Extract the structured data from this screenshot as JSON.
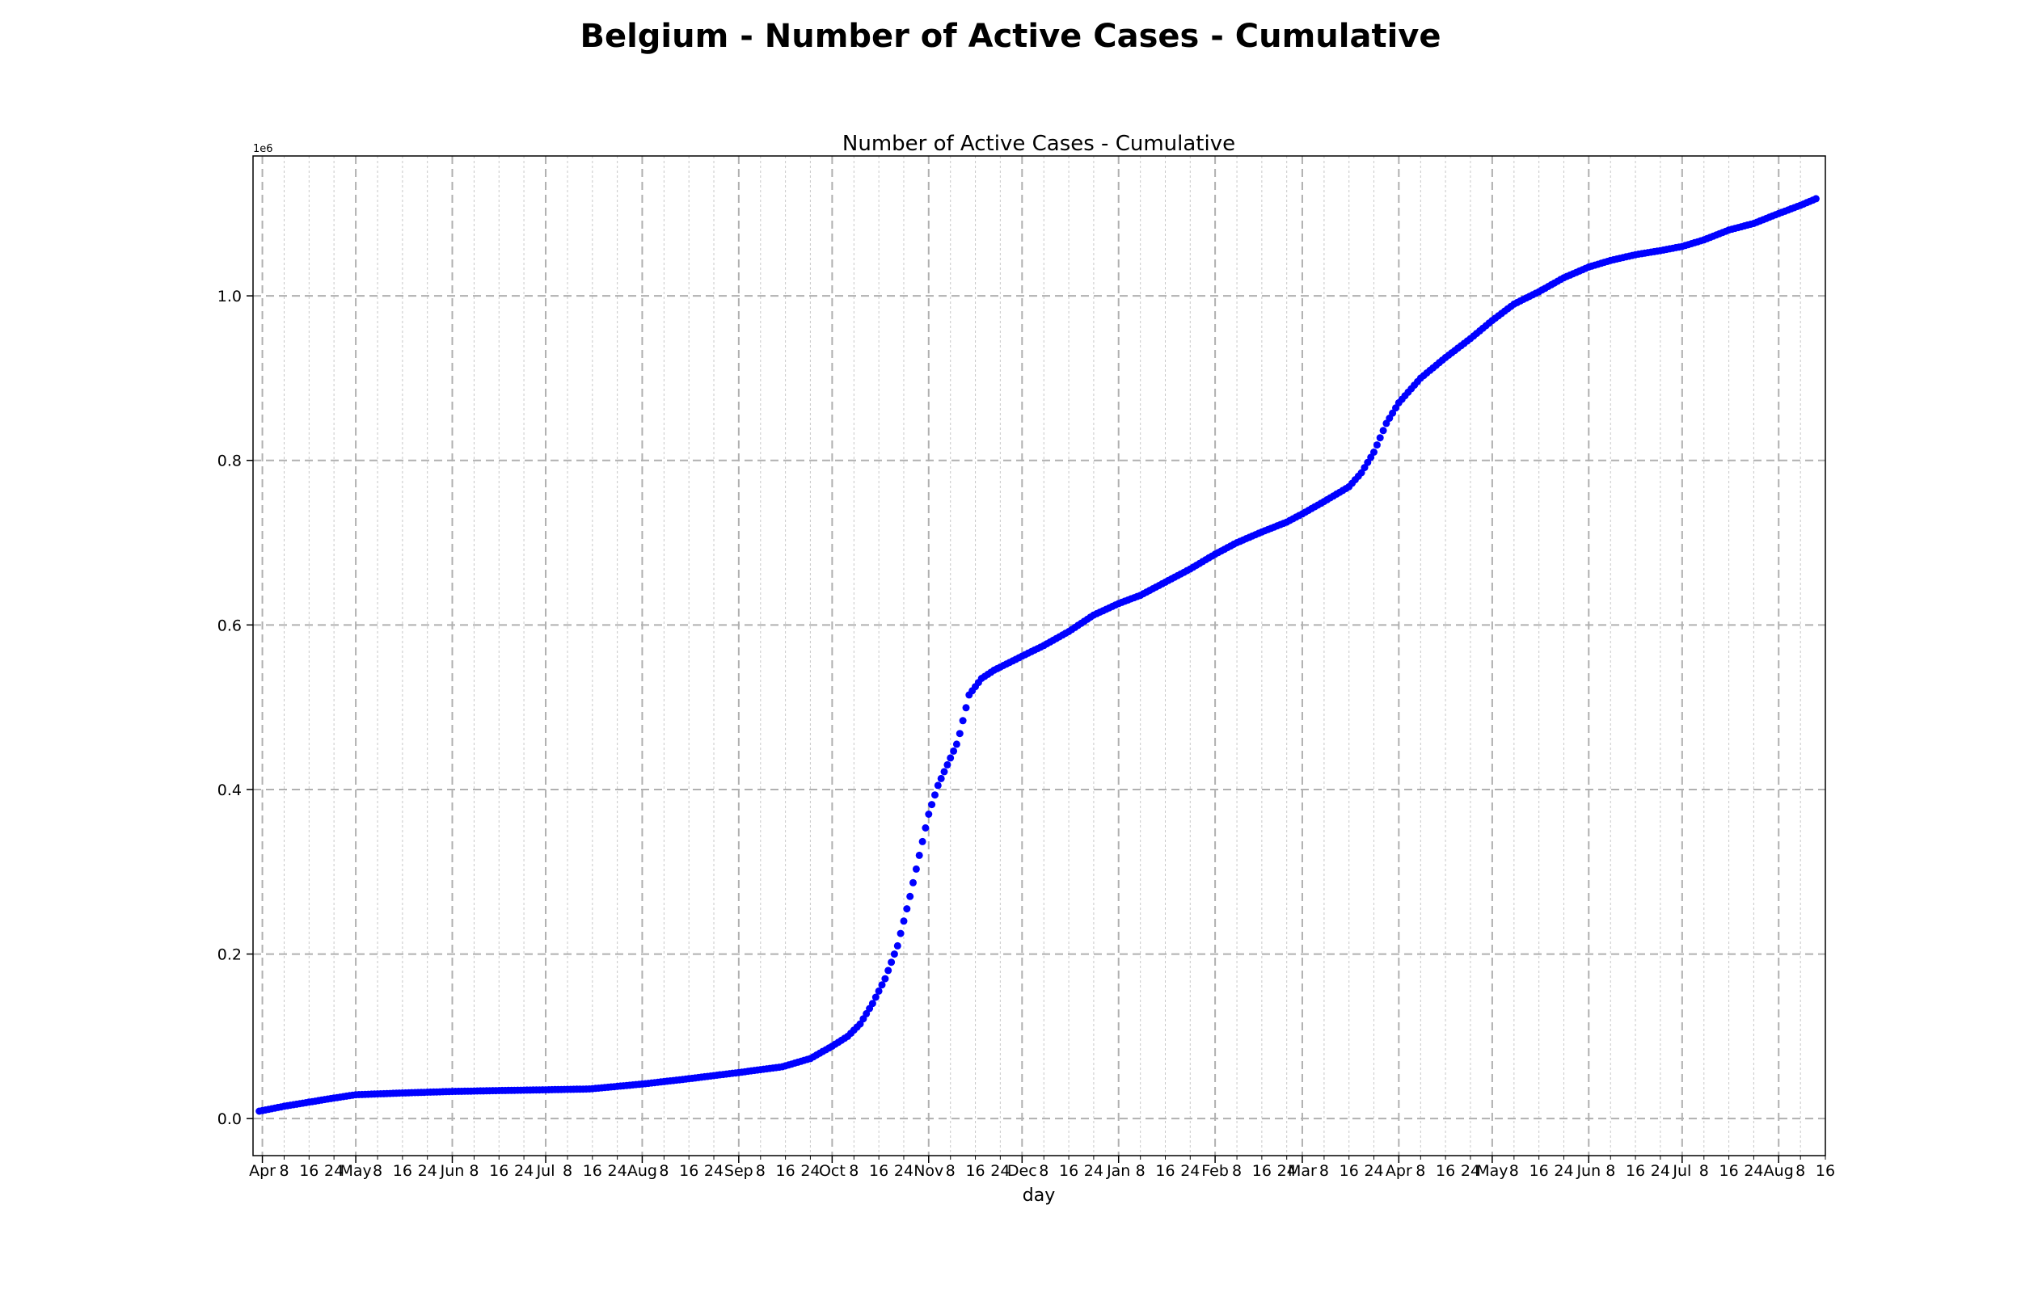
{
  "page": {
    "suptitle": "Belgium - Number of Active Cases - Cumulative"
  },
  "chart_data": {
    "type": "scatter",
    "title": "Number of Active Cases - Cumulative",
    "xlabel": "day",
    "ylabel": "",
    "y_offset_label": "1e6",
    "y_scale_factor": 1000000,
    "marker_color": "#0000ff",
    "grid": {
      "major": true,
      "minor_x": true,
      "style": "dashed",
      "color": "#b0b0b0"
    },
    "xlim": [
      "2020-03-29",
      "2021-08-16"
    ],
    "ylim": [
      -0.045,
      1.17
    ],
    "y_ticks": [
      0.0,
      0.2,
      0.4,
      0.6,
      0.8,
      1.0
    ],
    "y_tick_labels": [
      "0.0",
      "0.2",
      "0.4",
      "0.6",
      "0.8",
      "1.0"
    ],
    "x_major_ticks": [
      {
        "date": "2020-04-01",
        "label": "Apr"
      },
      {
        "date": "2020-05-01",
        "label": "May"
      },
      {
        "date": "2020-06-01",
        "label": "Jun"
      },
      {
        "date": "2020-07-01",
        "label": "Jul"
      },
      {
        "date": "2020-08-01",
        "label": "Aug"
      },
      {
        "date": "2020-09-01",
        "label": "Sep"
      },
      {
        "date": "2020-10-01",
        "label": "Oct"
      },
      {
        "date": "2020-11-01",
        "label": "Nov"
      },
      {
        "date": "2020-12-01",
        "label": "Dec"
      },
      {
        "date": "2021-01-01",
        "label": "Jan"
      },
      {
        "date": "2021-02-01",
        "label": "Feb"
      },
      {
        "date": "2021-03-01",
        "label": "Mar"
      },
      {
        "date": "2021-04-01",
        "label": "Apr"
      },
      {
        "date": "2021-05-01",
        "label": "May"
      },
      {
        "date": "2021-06-01",
        "label": "Jun"
      },
      {
        "date": "2021-07-01",
        "label": "Jul"
      },
      {
        "date": "2021-08-01",
        "label": "Aug"
      }
    ],
    "x_minor_tick_days": [
      8,
      16,
      24
    ],
    "series": [
      {
        "x": [
          "2020-03-31",
          "2020-04-08",
          "2020-04-16",
          "2020-04-24",
          "2020-05-01",
          "2020-05-15",
          "2020-06-01",
          "2020-06-15",
          "2020-07-01",
          "2020-07-15",
          "2020-08-01",
          "2020-08-15",
          "2020-09-01",
          "2020-09-15",
          "2020-09-24",
          "2020-10-01",
          "2020-10-06",
          "2020-10-10",
          "2020-10-14",
          "2020-10-18",
          "2020-10-22",
          "2020-10-26",
          "2020-10-29",
          "2020-11-01",
          "2020-11-04",
          "2020-11-07",
          "2020-11-10",
          "2020-11-11",
          "2020-11-14",
          "2020-11-18",
          "2020-11-22",
          "2020-12-01",
          "2020-12-08",
          "2020-12-16",
          "2020-12-24",
          "2021-01-01",
          "2021-01-08",
          "2021-01-16",
          "2021-01-24",
          "2021-02-01",
          "2021-02-08",
          "2021-02-16",
          "2021-02-24",
          "2021-03-01",
          "2021-03-08",
          "2021-03-16",
          "2021-03-20",
          "2021-03-24",
          "2021-03-28",
          "2021-04-01",
          "2021-04-08",
          "2021-04-16",
          "2021-04-24",
          "2021-05-01",
          "2021-05-08",
          "2021-05-16",
          "2021-05-24",
          "2021-06-01",
          "2021-06-08",
          "2021-06-16",
          "2021-06-24",
          "2021-07-01",
          "2021-07-08",
          "2021-07-16",
          "2021-07-24",
          "2021-08-01",
          "2021-08-08",
          "2021-08-13"
        ],
        "y": [
          0.009,
          0.015,
          0.02,
          0.025,
          0.029,
          0.031,
          0.033,
          0.034,
          0.035,
          0.036,
          0.042,
          0.048,
          0.056,
          0.063,
          0.073,
          0.088,
          0.1,
          0.115,
          0.14,
          0.17,
          0.21,
          0.27,
          0.32,
          0.37,
          0.405,
          0.43,
          0.455,
          0.468,
          0.515,
          0.535,
          0.545,
          0.562,
          0.575,
          0.592,
          0.612,
          0.626,
          0.636,
          0.652,
          0.668,
          0.686,
          0.7,
          0.713,
          0.725,
          0.735,
          0.75,
          0.768,
          0.785,
          0.81,
          0.845,
          0.87,
          0.9,
          0.925,
          0.948,
          0.97,
          0.99,
          1.005,
          1.022,
          1.035,
          1.043,
          1.05,
          1.055,
          1.06,
          1.068,
          1.08,
          1.088,
          1.1,
          1.11,
          1.118
        ]
      }
    ]
  }
}
